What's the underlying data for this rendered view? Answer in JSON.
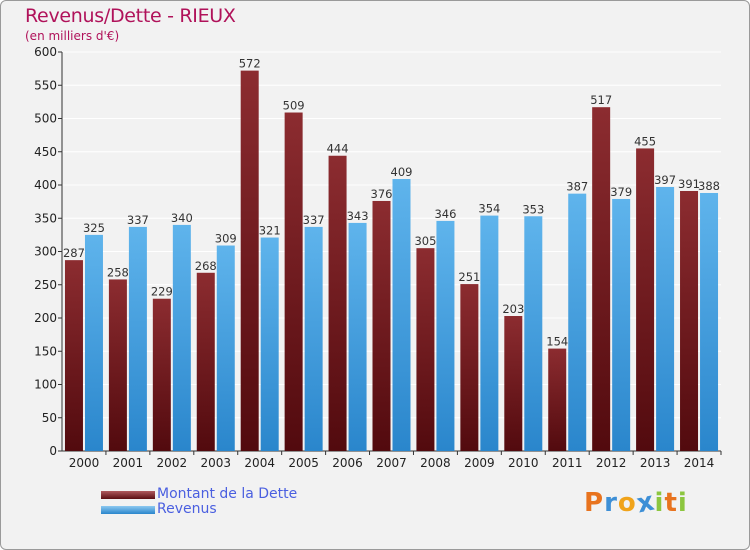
{
  "chart_data": {
    "type": "bar",
    "title": "Revenus/Dette - RIEUX",
    "subtitle": "(en milliers d'€)",
    "categories": [
      "2000",
      "2001",
      "2002",
      "2003",
      "2004",
      "2005",
      "2006",
      "2007",
      "2008",
      "2009",
      "2010",
      "2011",
      "2012",
      "2013",
      "2014"
    ],
    "series": [
      {
        "name": "Montant de la Dette",
        "color": "#7a1e22",
        "values": [
          287,
          258,
          229,
          268,
          572,
          509,
          444,
          376,
          305,
          251,
          203,
          154,
          517,
          455,
          391
        ]
      },
      {
        "name": "Revenus",
        "color": "#3f9de0",
        "values": [
          325,
          337,
          340,
          309,
          321,
          337,
          343,
          409,
          346,
          354,
          353,
          387,
          379,
          397,
          388
        ]
      }
    ],
    "ylim": [
      0,
      600
    ],
    "yticks": [
      0,
      50,
      100,
      150,
      200,
      250,
      300,
      350,
      400,
      450,
      500,
      550,
      600
    ],
    "grid": true,
    "legend": "bottom-left"
  },
  "logo": {
    "letters": [
      "P",
      "r",
      "o",
      "x",
      "i",
      "t",
      "i"
    ],
    "colors": [
      "#e8731e",
      "#3d8fd6",
      "#f0a31a",
      "#3d8fd6",
      "#8cc63f",
      "#e8731e",
      "#8cc63f"
    ]
  }
}
